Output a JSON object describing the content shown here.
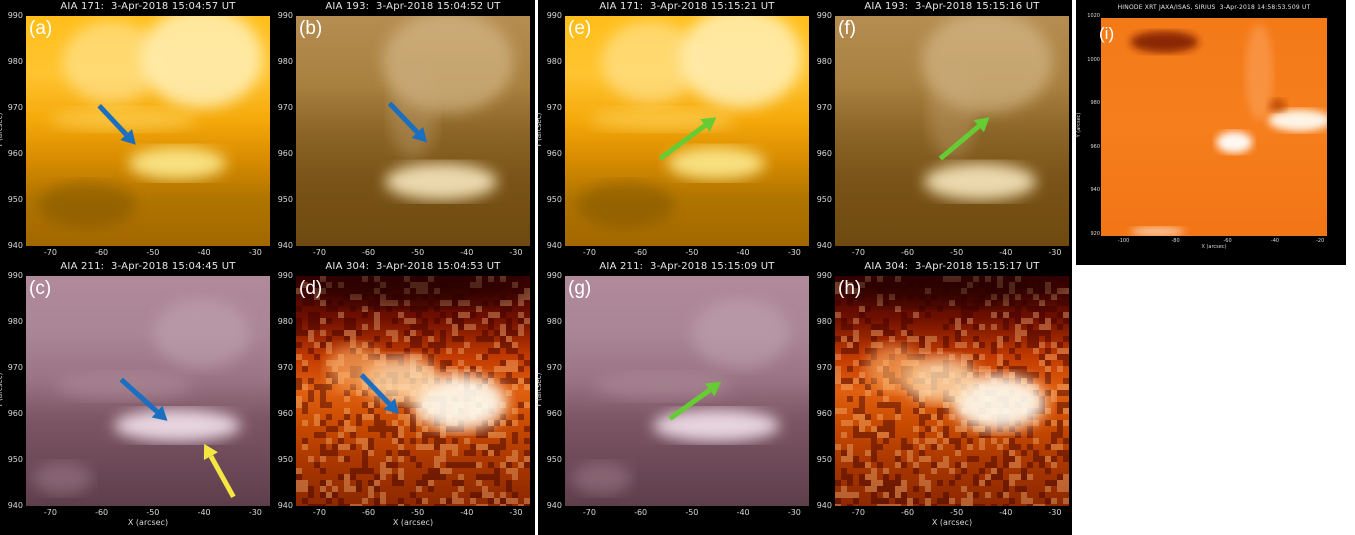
{
  "colors": {
    "arrow_blue": "#1a6fc0",
    "arrow_green": "#66cc33",
    "arrow_yellow": "#f5e642",
    "background": "#000000"
  },
  "panels": [
    {
      "key": "a",
      "label": "(a)",
      "title": "AIA 171:  3-Apr-2018 15:04:57 UT",
      "theme": "aia171",
      "yticks": [
        "990",
        "980",
        "970",
        "960",
        "950",
        "940"
      ],
      "xticks": [
        "-70",
        "-60",
        "-50",
        "-40",
        "-30"
      ],
      "ylabel": "Y (arcsec)",
      "xlabel": "",
      "arrows": [
        {
          "color": "arrow_blue",
          "dir": "se"
        }
      ]
    },
    {
      "key": "b",
      "label": "(b)",
      "title": "AIA 193:  3-Apr-2018 15:04:52 UT",
      "theme": "aia193",
      "yticks": [
        "990",
        "980",
        "970",
        "960",
        "950",
        "940"
      ],
      "xticks": [
        "-70",
        "-60",
        "-50",
        "-40",
        "-30"
      ],
      "ylabel": "",
      "xlabel": "",
      "arrows": [
        {
          "color": "arrow_blue",
          "dir": "se"
        }
      ]
    },
    {
      "key": "c",
      "label": "(c)",
      "title": "AIA 211:  3-Apr-2018 15:04:45 UT",
      "theme": "aia211",
      "yticks": [
        "990",
        "980",
        "970",
        "960",
        "950",
        "940"
      ],
      "xticks": [
        "-70",
        "-60",
        "-50",
        "-40",
        "-30"
      ],
      "ylabel": "Y (arcsec)",
      "xlabel": "X (arcsec)",
      "arrows": [
        {
          "color": "arrow_blue",
          "dir": "se"
        },
        {
          "color": "arrow_yellow",
          "dir": "nw"
        }
      ]
    },
    {
      "key": "d",
      "label": "(d)",
      "title": "AIA 304:  3-Apr-2018 15:04:53 UT",
      "theme": "aia304",
      "yticks": [
        "990",
        "980",
        "970",
        "960",
        "950",
        "940"
      ],
      "xticks": [
        "-70",
        "-60",
        "-50",
        "-40",
        "-30"
      ],
      "ylabel": "",
      "xlabel": "X (arcsec)",
      "arrows": [
        {
          "color": "arrow_blue",
          "dir": "se"
        }
      ]
    },
    {
      "key": "e",
      "label": "(e)",
      "title": "AIA 171:  3-Apr-2018 15:15:21 UT",
      "theme": "aia171",
      "yticks": [
        "990",
        "980",
        "970",
        "960",
        "950",
        "940"
      ],
      "xticks": [
        "-70",
        "-60",
        "-50",
        "-40",
        "-30"
      ],
      "ylabel": "Y (arcsec)",
      "xlabel": "",
      "arrows": [
        {
          "color": "arrow_green",
          "dir": "ne"
        }
      ]
    },
    {
      "key": "f",
      "label": "(f)",
      "title": "AIA 193:  3-Apr-2018 15:15:16 UT",
      "theme": "aia193",
      "yticks": [
        "990",
        "980",
        "970",
        "960",
        "950",
        "940"
      ],
      "xticks": [
        "-70",
        "-60",
        "-50",
        "-40",
        "-30"
      ],
      "ylabel": "",
      "xlabel": "",
      "arrows": [
        {
          "color": "arrow_green",
          "dir": "ne"
        }
      ]
    },
    {
      "key": "g",
      "label": "(g)",
      "title": "AIA 211:  3-Apr-2018 15:15:09 UT",
      "theme": "aia211",
      "yticks": [
        "990",
        "980",
        "970",
        "960",
        "950",
        "940"
      ],
      "xticks": [
        "-70",
        "-60",
        "-50",
        "-40",
        "-30"
      ],
      "ylabel": "Y (arcsec)",
      "xlabel": "",
      "arrows": [
        {
          "color": "arrow_green",
          "dir": "ne"
        }
      ]
    },
    {
      "key": "h",
      "label": "(h)",
      "title": "AIA 304:  3-Apr-2018 15:15:17 UT",
      "theme": "aia304",
      "yticks": [
        "990",
        "980",
        "970",
        "960",
        "950",
        "940"
      ],
      "xticks": [
        "-70",
        "-60",
        "-50",
        "-40",
        "-30"
      ],
      "ylabel": "",
      "xlabel": "X (arcsec)",
      "arrows": []
    },
    {
      "key": "i",
      "label": "(i)",
      "title": "HINODE XRT JAXA/ISAS, SIRIUS  3-Apr-2018 14:58:53.509 UT",
      "theme": "xrt",
      "yticks": [
        "1020",
        "1000",
        "980",
        "960",
        "940",
        "920"
      ],
      "xticks": [
        "-100",
        "-80",
        "-60",
        "-40",
        "-20"
      ],
      "ylabel": "Y (arcsec)",
      "xlabel": "X (arcsec)",
      "arrows": []
    }
  ]
}
